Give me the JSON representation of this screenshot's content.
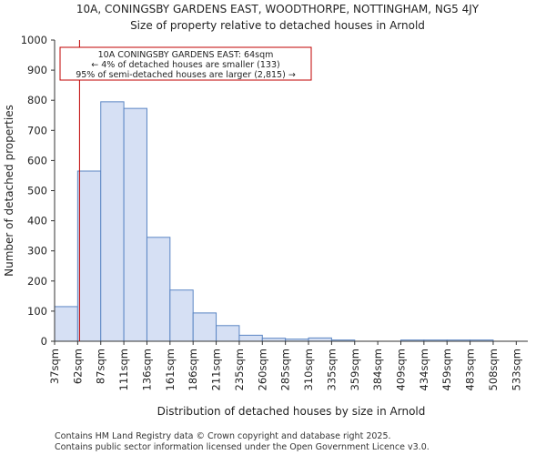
{
  "title_line1": "10A, CONINGSBY GARDENS EAST, WOODTHORPE, NOTTINGHAM, NG5 4JY",
  "title_line2": "Size of property relative to detached houses in Arnold",
  "footer_line1": "Contains HM Land Registry data © Crown copyright and database right 2025.",
  "footer_line2": "Contains public sector information licensed under the Open Government Licence v3.0.",
  "colors": {
    "bar_fill": "#d6e0f4",
    "bar_stroke": "#5b86c4",
    "marker": "#c00000",
    "axis": "#333333"
  },
  "chart_data": {
    "type": "bar",
    "title": "10A, CONINGSBY GARDENS EAST, WOODTHORPE, NOTTINGHAM, NG5 4JY",
    "subtitle": "Size of property relative to detached houses in Arnold",
    "xlabel": "Distribution of detached houses by size in Arnold",
    "ylabel": "Number of detached properties",
    "ylim": [
      0,
      1000
    ],
    "yticks": [
      0,
      100,
      200,
      300,
      400,
      500,
      600,
      700,
      800,
      900,
      1000
    ],
    "categories": [
      "37sqm",
      "62sqm",
      "87sqm",
      "111sqm",
      "136sqm",
      "161sqm",
      "186sqm",
      "211sqm",
      "235sqm",
      "260sqm",
      "285sqm",
      "310sqm",
      "335sqm",
      "359sqm",
      "384sqm",
      "409sqm",
      "434sqm",
      "459sqm",
      "483sqm",
      "508sqm",
      "533sqm"
    ],
    "values": [
      115,
      565,
      795,
      773,
      345,
      170,
      94,
      52,
      20,
      10,
      7,
      11,
      4,
      0,
      0,
      4,
      4,
      4,
      4,
      0,
      0
    ],
    "marker": {
      "value_sqm": 64,
      "bin_position": 1.08,
      "annotation": [
        "10A CONINGSBY GARDENS EAST: 64sqm",
        "← 4% of detached houses are smaller (133)",
        "95% of semi-detached houses are larger (2,815) →"
      ]
    }
  }
}
